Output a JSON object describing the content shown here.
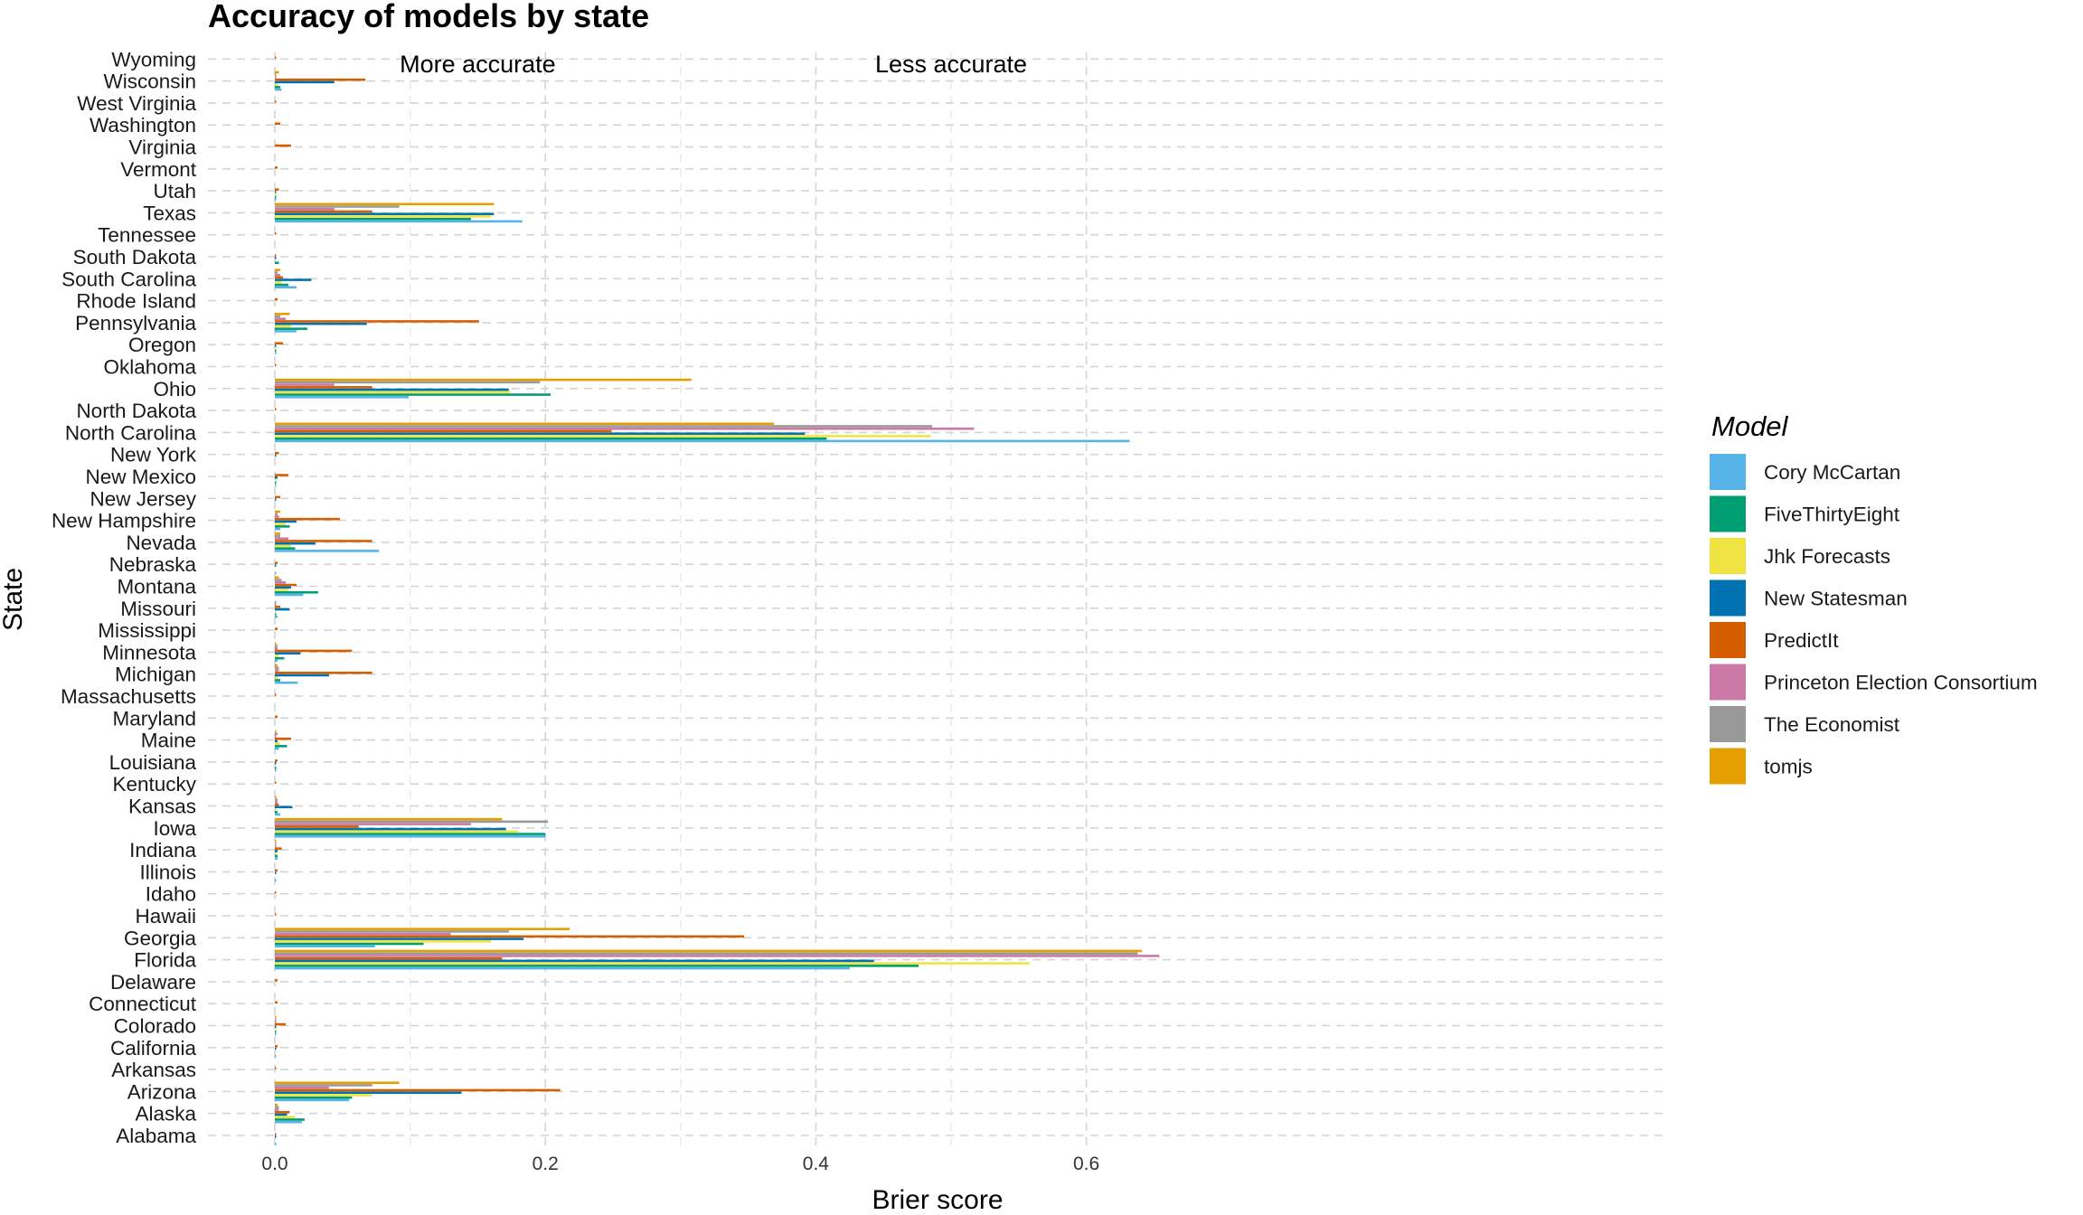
{
  "chart_data": {
    "type": "bar",
    "orientation": "horizontal",
    "title": "Accuracy of models by state",
    "xlabel": "Brier score",
    "ylabel": "State",
    "xlim": [
      0,
      0.68
    ],
    "x_ticks": [
      0.0,
      0.2,
      0.4,
      0.6
    ],
    "x_tick_labels": [
      "0.0",
      "0.2",
      "0.4",
      "0.6"
    ],
    "grid": true,
    "annotations": [
      {
        "text": "More accurate",
        "x": 0.15
      },
      {
        "text": "Less accurate",
        "x": 0.5
      }
    ],
    "legend": {
      "title": "Model",
      "placement": "right"
    },
    "categories": [
      "Alabama",
      "Alaska",
      "Arizona",
      "Arkansas",
      "California",
      "Colorado",
      "Connecticut",
      "Delaware",
      "Florida",
      "Georgia",
      "Hawaii",
      "Idaho",
      "Illinois",
      "Indiana",
      "Iowa",
      "Kansas",
      "Kentucky",
      "Louisiana",
      "Maine",
      "Maryland",
      "Massachusetts",
      "Michigan",
      "Minnesota",
      "Mississippi",
      "Missouri",
      "Montana",
      "Nebraska",
      "Nevada",
      "New Hampshire",
      "New Jersey",
      "New Mexico",
      "New York",
      "North Carolina",
      "North Dakota",
      "Ohio",
      "Oklahoma",
      "Oregon",
      "Pennsylvania",
      "Rhode Island",
      "South Carolina",
      "South Dakota",
      "Tennessee",
      "Texas",
      "Utah",
      "Vermont",
      "Virginia",
      "Washington",
      "West Virginia",
      "Wisconsin",
      "Wyoming"
    ],
    "series": [
      {
        "name": "Cory McCartan",
        "color": "#56B4E9",
        "values": [
          0.001,
          0.02,
          0.055,
          0.0,
          0.001,
          0.001,
          0.0,
          0.0,
          0.425,
          0.074,
          0.0,
          0.0,
          0.001,
          0.002,
          0.2,
          0.004,
          0.0,
          0.001,
          0.003,
          0.0,
          0.0,
          0.017,
          0.002,
          0.0,
          0.002,
          0.021,
          0.001,
          0.077,
          0.004,
          0.0,
          0.001,
          0.0,
          0.632,
          0.0,
          0.099,
          0.0,
          0.001,
          0.016,
          0.0,
          0.016,
          0.0,
          0.0,
          0.183,
          0.001,
          0.0,
          0.0,
          0.0,
          0.0,
          0.005,
          0.0
        ]
      },
      {
        "name": "FiveThirtyEight",
        "color": "#009E73",
        "values": [
          0.0,
          0.022,
          0.057,
          0.0,
          0.0,
          0.001,
          0.0,
          0.0,
          0.476,
          0.11,
          0.0,
          0.0,
          0.0,
          0.002,
          0.2,
          0.002,
          0.0,
          0.001,
          0.009,
          0.0,
          0.0,
          0.004,
          0.007,
          0.0,
          0.001,
          0.032,
          0.0,
          0.015,
          0.011,
          0.0,
          0.001,
          0.0,
          0.408,
          0.0,
          0.204,
          0.0,
          0.001,
          0.024,
          0.0,
          0.01,
          0.003,
          0.0,
          0.145,
          0.001,
          0.0,
          0.0,
          0.0,
          0.0,
          0.004,
          0.0
        ]
      },
      {
        "name": "Jhk Forecasts",
        "color": "#F0E442",
        "values": [
          0.0,
          0.015,
          0.072,
          0.0,
          0.0,
          0.001,
          0.0,
          0.0,
          0.558,
          0.16,
          0.0,
          0.0,
          0.0,
          0.001,
          0.18,
          0.001,
          0.0,
          0.0,
          0.004,
          0.0,
          0.0,
          0.002,
          0.003,
          0.0,
          0.001,
          0.01,
          0.0,
          0.012,
          0.008,
          0.0,
          0.001,
          0.0,
          0.485,
          0.0,
          0.174,
          0.0,
          0.001,
          0.012,
          0.0,
          0.005,
          0.0,
          0.0,
          0.16,
          0.001,
          0.0,
          0.0,
          0.0,
          0.0,
          0.002,
          0.0
        ]
      },
      {
        "name": "New Statesman",
        "color": "#0072B2",
        "values": [
          0.001,
          0.009,
          0.138,
          0.0,
          0.001,
          0.001,
          0.0,
          0.0,
          0.443,
          0.184,
          0.0,
          0.0,
          0.001,
          0.002,
          0.171,
          0.013,
          0.0,
          0.001,
          0.002,
          0.0,
          0.0,
          0.04,
          0.019,
          0.0,
          0.011,
          0.012,
          0.001,
          0.03,
          0.016,
          0.001,
          0.002,
          0.001,
          0.392,
          0.0,
          0.173,
          0.0,
          0.001,
          0.068,
          0.0,
          0.027,
          0.001,
          0.0,
          0.162,
          0.001,
          0.0,
          0.0,
          0.0,
          0.0,
          0.044,
          0.0
        ]
      },
      {
        "name": "PredictIt",
        "color": "#D55E00",
        "values": [
          0.001,
          0.011,
          0.211,
          0.001,
          0.002,
          0.008,
          0.002,
          0.002,
          0.168,
          0.347,
          0.001,
          0.001,
          0.002,
          0.005,
          0.062,
          0.003,
          0.001,
          0.002,
          0.012,
          0.002,
          0.001,
          0.072,
          0.057,
          0.002,
          0.004,
          0.016,
          0.002,
          0.072,
          0.048,
          0.004,
          0.01,
          0.003,
          0.249,
          0.001,
          0.072,
          0.001,
          0.006,
          0.151,
          0.002,
          0.006,
          0.001,
          0.001,
          0.072,
          0.003,
          0.002,
          0.012,
          0.004,
          0.001,
          0.067,
          0.001
        ]
      },
      {
        "name": "Princeton Election Consortium",
        "color": "#CC79A7",
        "values": [
          0.0,
          0.003,
          0.04,
          0.0,
          0.0,
          0.001,
          0.0,
          0.0,
          0.654,
          0.13,
          0.0,
          0.0,
          0.0,
          0.001,
          0.145,
          0.002,
          0.0,
          0.0,
          0.001,
          0.0,
          0.0,
          0.003,
          0.002,
          0.0,
          0.001,
          0.008,
          0.0,
          0.01,
          0.003,
          0.0,
          0.0,
          0.0,
          0.517,
          0.0,
          0.044,
          0.0,
          0.0,
          0.008,
          0.0,
          0.004,
          0.0,
          0.0,
          0.044,
          0.0,
          0.0,
          0.0,
          0.0,
          0.0,
          0.001,
          0.0
        ]
      },
      {
        "name": "The Economist",
        "color": "#999999",
        "values": [
          0.0,
          0.003,
          0.072,
          0.0,
          0.0,
          0.001,
          0.0,
          0.0,
          0.638,
          0.173,
          0.0,
          0.0,
          0.0,
          0.001,
          0.202,
          0.002,
          0.0,
          0.0,
          0.002,
          0.0,
          0.0,
          0.003,
          0.002,
          0.0,
          0.001,
          0.005,
          0.0,
          0.004,
          0.002,
          0.0,
          0.0,
          0.0,
          0.486,
          0.0,
          0.196,
          0.0,
          0.0,
          0.004,
          0.0,
          0.002,
          0.0,
          0.0,
          0.092,
          0.0,
          0.0,
          0.0,
          0.0,
          0.0,
          0.001,
          0.0
        ]
      },
      {
        "name": "tomjs",
        "color": "#E69F00",
        "values": [
          0.0,
          0.002,
          0.092,
          0.0,
          0.0,
          0.001,
          0.0,
          0.0,
          0.641,
          0.218,
          0.0,
          0.0,
          0.0,
          0.001,
          0.168,
          0.001,
          0.0,
          0.0,
          0.001,
          0.0,
          0.0,
          0.002,
          0.001,
          0.0,
          0.0,
          0.003,
          0.0,
          0.004,
          0.004,
          0.0,
          0.0,
          0.0,
          0.369,
          0.0,
          0.308,
          0.0,
          0.0,
          0.011,
          0.0,
          0.004,
          0.0,
          0.0,
          0.162,
          0.0,
          0.0,
          0.0,
          0.0,
          0.0,
          0.003,
          0.0
        ]
      }
    ]
  }
}
